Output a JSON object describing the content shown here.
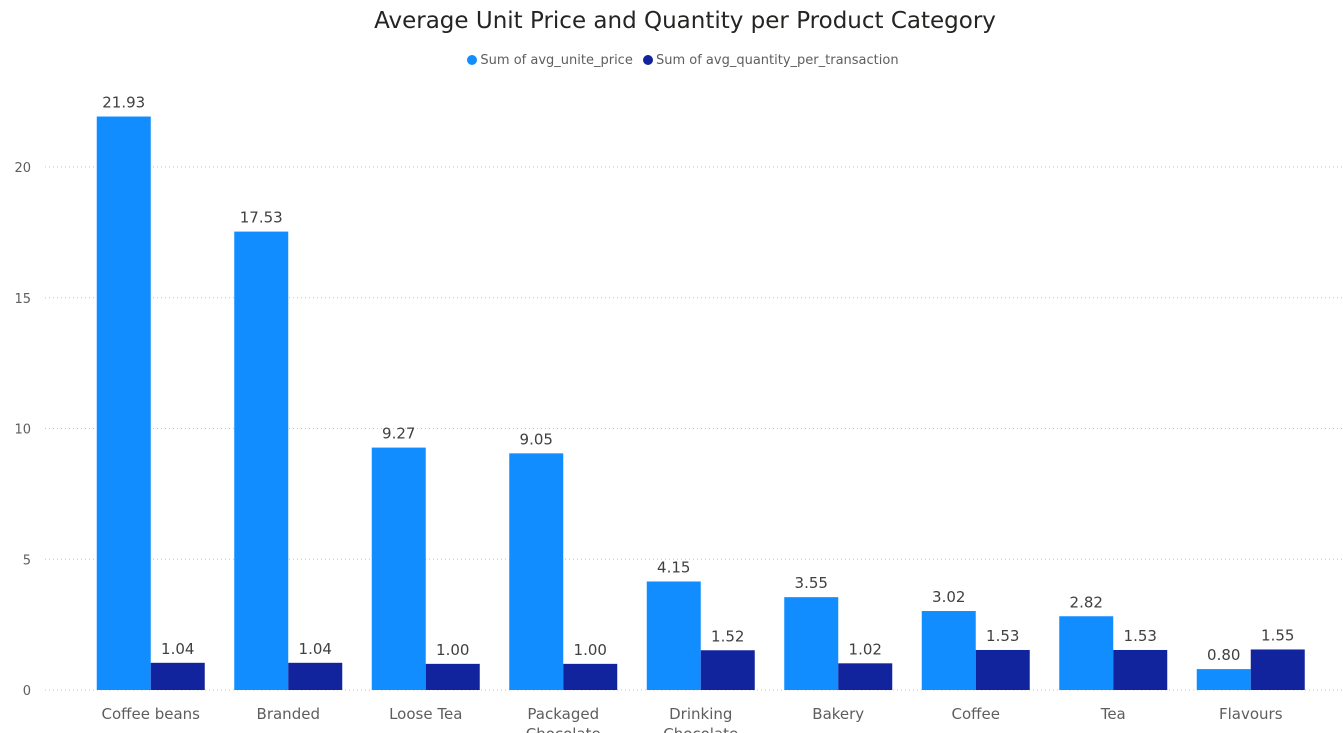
{
  "chart_data": {
    "type": "bar",
    "title": "Average Unit Price and Quantity per Product Category",
    "categories": [
      "Coffee beans",
      "Branded",
      "Loose Tea",
      "Packaged Chocolate",
      "Drinking Chocolate",
      "Bakery",
      "Coffee",
      "Tea",
      "Flavours"
    ],
    "series": [
      {
        "name": "Sum of avg_unite_price",
        "color": "#118dff",
        "values": [
          21.93,
          17.53,
          9.27,
          9.05,
          4.15,
          3.55,
          3.02,
          2.82,
          0.8
        ]
      },
      {
        "name": "Sum of avg_quantity_per_transaction",
        "color": "#12239e",
        "values": [
          1.04,
          1.04,
          1.0,
          1.0,
          1.52,
          1.02,
          1.53,
          1.53,
          1.55
        ]
      }
    ],
    "yticks": [
      0,
      5,
      10,
      15,
      20
    ],
    "ylim": [
      0,
      22
    ],
    "grid": true,
    "legend_position": "top-center"
  }
}
